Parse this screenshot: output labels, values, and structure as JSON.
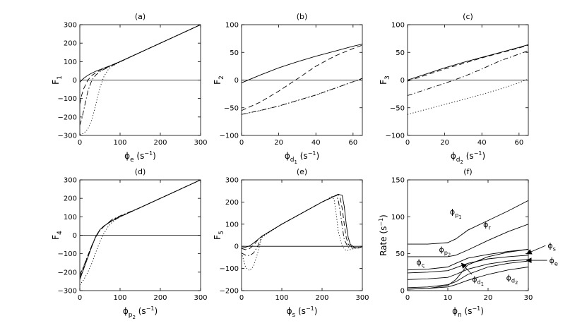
{
  "chart_data": [
    {
      "type": "line",
      "title": "(a)",
      "ylabel": "F",
      "ylabel_sub": "1",
      "xlabel_symbol": "ϕ",
      "xlabel_sub": "e",
      "xlabel_unit": "(s",
      "xlabel_unit_sup": "−1",
      "xlabel_unit_close": ")",
      "xlim": [
        0,
        300
      ],
      "ylim": [
        -300,
        300
      ],
      "xticks": [
        0,
        100,
        200,
        300
      ],
      "yticks": [
        -300,
        -200,
        -100,
        0,
        100,
        200,
        300
      ],
      "zero_line": true,
      "series": [
        {
          "style": "solid",
          "x": [
            0,
            10,
            20,
            30,
            40,
            60,
            80,
            100,
            150,
            200,
            250,
            300
          ],
          "y": [
            -12,
            10,
            26,
            38,
            48,
            65,
            82,
            100,
            150,
            200,
            250,
            300
          ]
        },
        {
          "style": "dashed",
          "x": [
            0,
            5,
            10,
            20,
            30,
            40,
            50,
            60,
            80,
            100,
            150,
            200,
            300
          ],
          "y": [
            -130,
            -80,
            -45,
            0,
            25,
            40,
            52,
            62,
            80,
            100,
            150,
            200,
            300
          ]
        },
        {
          "style": "dashdot",
          "x": [
            0,
            5,
            10,
            20,
            30,
            40,
            50,
            60,
            80,
            100,
            150,
            200,
            300
          ],
          "y": [
            -245,
            -210,
            -160,
            -60,
            0,
            28,
            45,
            58,
            78,
            99,
            150,
            200,
            300
          ]
        },
        {
          "style": "dotted",
          "x": [
            0,
            10,
            20,
            30,
            40,
            50,
            60,
            70,
            80,
            100,
            150,
            200,
            300
          ],
          "y": [
            -295,
            -288,
            -265,
            -215,
            -130,
            -40,
            20,
            55,
            75,
            98,
            150,
            200,
            300
          ]
        }
      ]
    },
    {
      "type": "line",
      "title": "(b)",
      "ylabel": "F",
      "ylabel_sub": "2",
      "xlabel_symbol": "ϕ",
      "xlabel_sub": "d",
      "xlabel_subsub": "1",
      "xlabel_unit": "(s",
      "xlabel_unit_sup": "−1",
      "xlabel_unit_close": ")",
      "xlim": [
        0,
        65
      ],
      "ylim": [
        -100,
        100
      ],
      "xticks": [
        0,
        20,
        40,
        60
      ],
      "yticks": [
        -100,
        -50,
        0,
        50,
        100
      ],
      "zero_line": true,
      "series": [
        {
          "style": "solid",
          "x": [
            0,
            10,
            20,
            30,
            40,
            50,
            60,
            65
          ],
          "y": [
            -5,
            9,
            22,
            33,
            43,
            52,
            61,
            65
          ]
        },
        {
          "style": "dashed",
          "x": [
            0,
            10,
            20,
            30,
            40,
            50,
            60,
            65
          ],
          "y": [
            -55,
            -40,
            -20,
            2,
            25,
            43,
            57,
            63
          ]
        },
        {
          "style": "dashdot",
          "x": [
            0,
            10,
            20,
            30,
            40,
            50,
            60,
            65
          ],
          "y": [
            -62,
            -55,
            -47,
            -37,
            -27,
            -15,
            -3,
            3
          ]
        },
        {
          "style": "dotted",
          "x": [
            0,
            10,
            20,
            30,
            40,
            50,
            60,
            65
          ],
          "y": [
            -62,
            -55,
            -47,
            -37,
            -27,
            -15,
            -3,
            2
          ]
        }
      ]
    },
    {
      "type": "line",
      "title": "(c)",
      "ylabel": "F",
      "ylabel_sub": "3",
      "xlabel_symbol": "ϕ",
      "xlabel_sub": "d",
      "xlabel_subsub": "2",
      "xlabel_unit": "(s",
      "xlabel_unit_sup": "−1",
      "xlabel_unit_close": ")",
      "xlim": [
        0,
        65
      ],
      "ylim": [
        -100,
        100
      ],
      "xticks": [
        0,
        20,
        40,
        60
      ],
      "yticks": [
        -100,
        -50,
        0,
        50,
        100
      ],
      "zero_line": true,
      "series": [
        {
          "style": "solid",
          "x": [
            0,
            10,
            20,
            30,
            40,
            50,
            60,
            65
          ],
          "y": [
            0,
            11,
            22,
            32,
            41,
            50,
            59,
            64
          ]
        },
        {
          "style": "dashed",
          "x": [
            0,
            10,
            20,
            30,
            40,
            50,
            60,
            65
          ],
          "y": [
            -2,
            9,
            20,
            30,
            40,
            49,
            58,
            63
          ]
        },
        {
          "style": "dashdot",
          "x": [
            0,
            10,
            20,
            30,
            40,
            50,
            60,
            65
          ],
          "y": [
            -28,
            -17,
            -6,
            6,
            20,
            35,
            47,
            53
          ]
        },
        {
          "style": "dotted",
          "x": [
            0,
            10,
            20,
            30,
            40,
            50,
            60,
            65
          ],
          "y": [
            -62,
            -53,
            -44,
            -35,
            -26,
            -16,
            -5,
            2
          ]
        }
      ]
    },
    {
      "type": "line",
      "title": "(d)",
      "ylabel": "F",
      "ylabel_sub": "4",
      "xlabel_symbol": "ϕ",
      "xlabel_sub": "p",
      "xlabel_subsub": "2",
      "xlabel_unit": "(s",
      "xlabel_unit_sup": "−1",
      "xlabel_unit_close": ")",
      "xlim": [
        0,
        300
      ],
      "ylim": [
        -300,
        300
      ],
      "xticks": [
        0,
        100,
        200,
        300
      ],
      "yticks": [
        -300,
        -200,
        -100,
        0,
        100,
        200,
        300
      ],
      "zero_line": true,
      "series": [
        {
          "style": "solid",
          "x": [
            0,
            10,
            20,
            30,
            40,
            50,
            60,
            80,
            100,
            150,
            200,
            300
          ],
          "y": [
            -240,
            -180,
            -120,
            -60,
            -5,
            30,
            50,
            78,
            100,
            150,
            200,
            300
          ]
        },
        {
          "style": "dashed",
          "x": [
            0,
            10,
            20,
            30,
            40,
            50,
            60,
            80,
            100,
            150,
            200,
            300
          ],
          "y": [
            -230,
            -170,
            -110,
            -55,
            -5,
            28,
            50,
            82,
            102,
            150,
            200,
            300
          ]
        },
        {
          "style": "dashdot",
          "x": [
            0,
            10,
            20,
            30,
            40,
            50,
            60,
            80,
            100,
            150,
            200,
            300
          ],
          "y": [
            -215,
            -165,
            -110,
            -55,
            -8,
            25,
            48,
            85,
            105,
            150,
            200,
            300
          ]
        },
        {
          "style": "dotted",
          "x": [
            0,
            10,
            20,
            30,
            40,
            50,
            60,
            70,
            80,
            100,
            150,
            200,
            300
          ],
          "y": [
            -270,
            -240,
            -200,
            -150,
            -90,
            -35,
            10,
            45,
            70,
            100,
            150,
            200,
            300
          ]
        }
      ]
    },
    {
      "type": "line",
      "title": "(e)",
      "ylabel": "F",
      "ylabel_sub": "5",
      "xlabel_symbol": "ϕ",
      "xlabel_sub": "s",
      "xlabel_unit": "(s",
      "xlabel_unit_sup": "−1",
      "xlabel_unit_close": ")",
      "xlim": [
        0,
        300
      ],
      "ylim": [
        -200,
        300
      ],
      "xticks": [
        0,
        100,
        200,
        300
      ],
      "yticks": [
        -200,
        -100,
        0,
        100,
        200,
        300
      ],
      "zero_line": true,
      "series": [
        {
          "style": "solid",
          "x": [
            0,
            10,
            20,
            30,
            40,
            50,
            100,
            150,
            200,
            240,
            250,
            255,
            260,
            265,
            270,
            280,
            290,
            300
          ],
          "y": [
            -8,
            -4,
            2,
            15,
            30,
            45,
            100,
            150,
            200,
            235,
            230,
            180,
            100,
            40,
            10,
            -5,
            -8,
            -2
          ]
        },
        {
          "style": "dashed",
          "x": [
            0,
            10,
            20,
            30,
            40,
            50,
            100,
            150,
            200,
            240,
            245,
            250,
            255,
            260,
            265,
            275,
            290,
            300
          ],
          "y": [
            -10,
            -15,
            -10,
            5,
            28,
            45,
            100,
            150,
            200,
            233,
            220,
            170,
            100,
            40,
            10,
            -5,
            -8,
            -2
          ]
        },
        {
          "style": "dashdot",
          "x": [
            0,
            10,
            20,
            30,
            40,
            50,
            100,
            150,
            200,
            235,
            240,
            245,
            250,
            255,
            265,
            280,
            300
          ],
          "y": [
            -30,
            -40,
            -42,
            -30,
            0,
            45,
            100,
            150,
            200,
            230,
            210,
            160,
            90,
            30,
            -5,
            -8,
            -2
          ]
        },
        {
          "style": "dotted",
          "x": [
            0,
            10,
            20,
            30,
            40,
            50,
            100,
            150,
            200,
            225,
            230,
            235,
            240,
            250,
            260,
            280,
            300
          ],
          "y": [
            -30,
            -95,
            -110,
            -90,
            -30,
            40,
            100,
            150,
            200,
            225,
            210,
            150,
            70,
            0,
            -20,
            -10,
            -2
          ]
        }
      ]
    },
    {
      "type": "line",
      "title": "(f)",
      "ylabel": "Rate",
      "ylabel_unit": "(s",
      "ylabel_unit_sup": "−1",
      "ylabel_unit_close": ")",
      "xlabel_symbol": "ϕ",
      "xlabel_sub": "n",
      "xlabel_unit": "(s",
      "xlabel_unit_sup": "−1",
      "xlabel_unit_close": ")",
      "xlim": [
        0,
        30
      ],
      "ylim": [
        0,
        150
      ],
      "xticks": [
        0,
        10,
        20,
        30
      ],
      "yticks": [
        0,
        50,
        100,
        150
      ],
      "zero_line": false,
      "series": [
        {
          "name": "ϕp1",
          "style": "solid",
          "x": [
            0,
            5,
            10,
            12,
            15,
            20,
            25,
            30
          ],
          "y": [
            63,
            63,
            65,
            70,
            82,
            95,
            108,
            122
          ]
        },
        {
          "name": "ϕr",
          "style": "solid",
          "x": [
            0,
            10,
            12,
            15,
            20,
            25,
            30
          ],
          "y": [
            46,
            46,
            48,
            55,
            68,
            80,
            90
          ]
        },
        {
          "name": "ϕs",
          "style": "solid",
          "x": [
            0,
            5,
            10,
            12,
            15,
            20,
            25,
            30
          ],
          "y": [
            2,
            3,
            7,
            15,
            35,
            46,
            52,
            56
          ]
        },
        {
          "name": "ϕp2",
          "style": "solid",
          "x": [
            0,
            5,
            10,
            12,
            15,
            20,
            25,
            30
          ],
          "y": [
            28,
            29,
            32,
            37,
            44,
            49,
            53,
            56
          ]
        },
        {
          "name": "ϕς",
          "style": "solid",
          "x": [
            0,
            5,
            10,
            12,
            15,
            20,
            25,
            30
          ],
          "y": [
            24,
            25,
            27,
            31,
            37,
            43,
            46,
            48
          ]
        },
        {
          "name": "ϕe",
          "style": "solid",
          "x": [
            0,
            5,
            10,
            12,
            15,
            20,
            25,
            30
          ],
          "y": [
            15,
            16,
            18,
            22,
            29,
            36,
            40,
            42
          ]
        },
        {
          "name": "ϕd1",
          "style": "solid",
          "x": [
            0,
            5,
            10,
            12,
            15,
            20,
            25,
            30
          ],
          "y": [
            4,
            5,
            8,
            12,
            22,
            32,
            37,
            40
          ]
        },
        {
          "name": "ϕd2",
          "style": "solid",
          "x": [
            0,
            5,
            10,
            12,
            15,
            20,
            25,
            30
          ],
          "y": [
            2,
            3,
            5,
            8,
            14,
            22,
            28,
            32
          ]
        }
      ],
      "annotations": [
        {
          "sym": "ϕ",
          "sub": "p",
          "subsub": "1",
          "x": 10.5,
          "y": 103
        },
        {
          "sym": "ϕ",
          "sub": "r",
          "x": 18.8,
          "y": 86
        },
        {
          "sym": "ϕ",
          "sub": "p",
          "subsub": "2",
          "x": 7.8,
          "y": 52
        },
        {
          "sym": "ϕ",
          "sub": "ς",
          "x": 2.2,
          "y": 35
        },
        {
          "sym": "ϕ",
          "sub": "d",
          "subsub": "1",
          "x": 16.0,
          "y": 12
        },
        {
          "sym": "ϕ",
          "sub": "d",
          "subsub": "2",
          "x": 24.5,
          "y": 14
        }
      ],
      "arrow_labels": [
        {
          "sym": "ϕ",
          "sub": "s",
          "label_x": 34.8,
          "label_y": 61,
          "to_x": 29.6,
          "to_y": 50
        },
        {
          "sym": "ϕ",
          "sub": "e",
          "label_x": 35.2,
          "label_y": 41,
          "to_x": 29.6,
          "to_y": 41
        }
      ],
      "arrow_d1": {
        "from_x": 16.0,
        "from_y": 22,
        "to_x": 13.4,
        "to_y": 37
      }
    }
  ]
}
